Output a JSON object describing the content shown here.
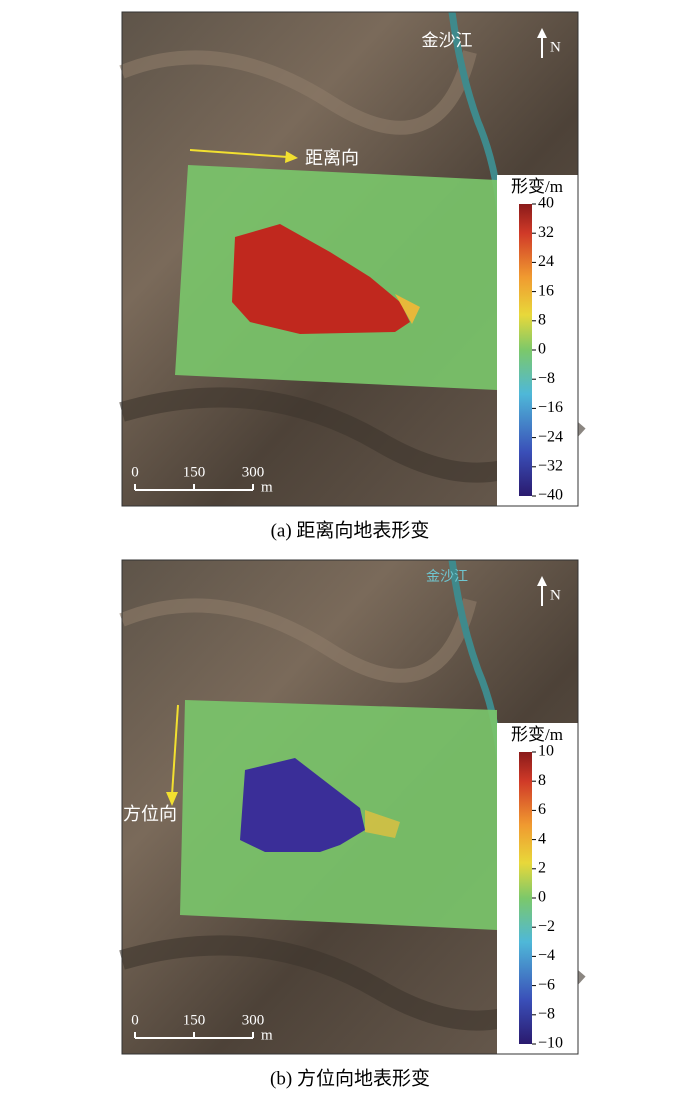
{
  "panels": [
    {
      "river": "金沙江",
      "north": "N",
      "direction": "距离向",
      "colorbar": {
        "title": "形变/m",
        "lim": [
          -40,
          40
        ],
        "ticks": [
          40,
          32,
          24,
          16,
          8,
          0,
          {
            "value": -8,
            "label": "−8"
          },
          {
            "value": -16,
            "label": "−16"
          },
          {
            "value": -24,
            "label": "−24"
          },
          {
            "value": -32,
            "label": "−32"
          },
          {
            "value": -40,
            "label": "−40"
          }
        ]
      },
      "scale": {
        "lim": [
          0,
          300
        ],
        "ticks": [
          0,
          150,
          300
        ],
        "unit": "m"
      },
      "caption": "(a) 距离向地表形变"
    },
    {
      "river": "金沙江",
      "north": "N",
      "direction": "方位向",
      "colorbar": {
        "title": "形变/m",
        "lim": [
          -10,
          10
        ],
        "ticks": [
          10,
          8,
          6,
          4,
          2,
          0,
          {
            "value": -2,
            "label": "−2"
          },
          {
            "value": -4,
            "label": "−4"
          },
          {
            "value": -6,
            "label": "−6"
          },
          {
            "value": -8,
            "label": "−8"
          },
          {
            "value": -10,
            "label": "−10"
          }
        ]
      },
      "scale": {
        "lim": [
          0,
          300
        ],
        "ticks": [
          0,
          150,
          300
        ],
        "unit": "m"
      },
      "caption": "(b) 方位向地表形变"
    }
  ]
}
